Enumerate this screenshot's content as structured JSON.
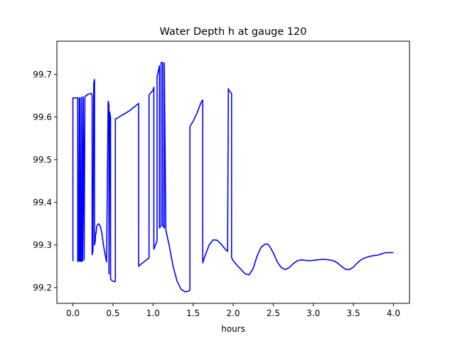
{
  "chart_data": {
    "type": "line",
    "title": "Water Depth h at gauge 120",
    "xlabel": "hours",
    "ylabel": "",
    "xlim": [
      -0.2,
      4.2
    ],
    "ylim": [
      99.163,
      99.778
    ],
    "xticks": [
      0.0,
      0.5,
      1.0,
      1.5,
      2.0,
      2.5,
      3.0,
      3.5,
      4.0
    ],
    "xtick_labels": [
      "0.0",
      "0.5",
      "1.0",
      "1.5",
      "2.0",
      "2.5",
      "3.0",
      "3.5",
      "4.0"
    ],
    "yticks": [
      99.2,
      99.3,
      99.4,
      99.5,
      99.6,
      99.7
    ],
    "ytick_labels": [
      "99.2",
      "99.3",
      "99.4",
      "99.5",
      "99.6",
      "99.7"
    ],
    "grid": false,
    "line_color": "#0000ff",
    "series": [
      {
        "x": [
          0.0,
          0.0,
          0.06,
          0.06,
          0.07,
          0.08,
          0.08,
          0.09,
          0.09,
          0.1,
          0.11,
          0.11,
          0.12,
          0.12,
          0.13,
          0.14,
          0.14,
          0.15,
          0.15,
          0.16,
          0.17,
          0.17,
          0.23,
          0.24,
          0.24,
          0.25,
          0.26,
          0.27,
          0.27,
          0.28,
          0.28,
          0.29,
          0.3,
          0.32,
          0.34,
          0.36,
          0.38,
          0.4,
          0.42,
          0.44,
          0.45,
          0.45,
          0.46,
          0.46,
          0.47,
          0.47,
          0.48,
          0.49,
          0.5,
          0.52,
          0.53,
          0.53,
          0.55,
          0.6,
          0.7,
          0.82,
          0.82,
          0.95,
          0.95,
          1.0,
          1.01,
          1.01,
          1.03,
          1.05,
          1.05,
          1.08,
          1.08,
          1.1,
          1.1,
          1.12,
          1.12,
          1.14,
          1.14,
          1.16,
          1.2,
          1.25,
          1.3,
          1.35,
          1.4,
          1.45,
          1.46,
          1.46,
          1.5,
          1.55,
          1.6,
          1.62,
          1.62,
          1.65,
          1.7,
          1.75,
          1.8,
          1.85,
          1.9,
          1.93,
          1.94,
          1.94,
          1.98,
          1.98,
          2.0,
          2.05,
          2.1,
          2.15,
          2.2,
          2.25,
          2.3,
          2.35,
          2.4,
          2.43,
          2.45,
          2.5,
          2.55,
          2.6,
          2.65,
          2.7,
          2.75,
          2.8,
          2.85,
          2.9,
          2.95,
          3.0,
          3.05,
          3.1,
          3.15,
          3.2,
          3.25,
          3.3,
          3.35,
          3.4,
          3.45,
          3.5,
          3.55,
          3.6,
          3.65,
          3.7,
          3.75,
          3.8,
          3.85,
          3.9,
          3.95,
          4.0
        ],
        "y": [
          99.262,
          99.645,
          99.645,
          99.262,
          99.262,
          99.645,
          99.262,
          99.262,
          99.645,
          99.262,
          99.262,
          99.647,
          99.262,
          99.262,
          99.647,
          99.265,
          99.265,
          99.648,
          99.648,
          99.65,
          99.65,
          99.652,
          99.656,
          99.65,
          99.277,
          99.286,
          99.68,
          99.688,
          99.3,
          99.31,
          99.32,
          99.33,
          99.345,
          99.35,
          99.345,
          99.33,
          99.3,
          99.28,
          99.26,
          99.637,
          99.63,
          99.232,
          99.612,
          99.61,
          99.6,
          99.22,
          99.218,
          99.216,
          99.215,
          99.214,
          99.214,
          99.596,
          99.597,
          99.603,
          99.614,
          99.632,
          99.25,
          99.27,
          99.652,
          99.663,
          99.67,
          99.29,
          99.3,
          99.31,
          99.695,
          99.72,
          99.34,
          99.345,
          99.728,
          99.728,
          99.345,
          99.34,
          99.727,
          99.335,
          99.3,
          99.25,
          99.215,
          99.196,
          99.19,
          99.192,
          99.195,
          99.578,
          99.59,
          99.61,
          99.635,
          99.64,
          99.258,
          99.275,
          99.3,
          99.312,
          99.311,
          99.302,
          99.29,
          99.285,
          99.667,
          99.665,
          99.655,
          99.27,
          99.263,
          99.252,
          99.242,
          99.232,
          99.23,
          99.245,
          99.275,
          99.295,
          99.302,
          99.302,
          99.298,
          99.282,
          99.26,
          99.247,
          99.242,
          99.247,
          99.256,
          99.263,
          99.265,
          99.264,
          99.263,
          99.264,
          99.265,
          99.266,
          99.266,
          99.265,
          99.263,
          99.258,
          99.25,
          99.243,
          99.242,
          99.248,
          99.258,
          99.266,
          99.27,
          99.273,
          99.275,
          99.276,
          99.279,
          99.282,
          99.282,
          99.282
        ]
      }
    ]
  }
}
